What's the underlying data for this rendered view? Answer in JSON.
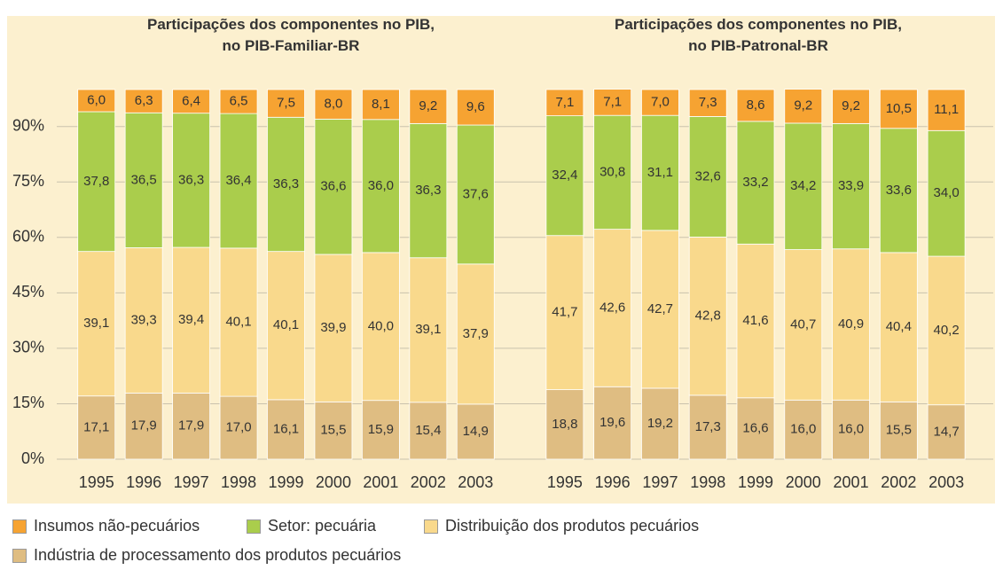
{
  "chart_data": [
    {
      "type": "stacked_bar",
      "title": "Participações dos componentes no PIB,\nno PIB-Familiar-BR",
      "categories": [
        "1995",
        "1996",
        "1997",
        "1998",
        "1999",
        "2000",
        "2001",
        "2002",
        "2003"
      ],
      "ylim": [
        0,
        100
      ],
      "yticks": [
        {
          "value": 0,
          "label": "0%"
        },
        {
          "value": 15,
          "label": "15%"
        },
        {
          "value": 30,
          "label": "30%"
        },
        {
          "value": 45,
          "label": "45%"
        },
        {
          "value": 60,
          "label": "60%"
        },
        {
          "value": 75,
          "label": "75%"
        },
        {
          "value": 90,
          "label": "90%"
        }
      ],
      "grid": true,
      "series": [
        {
          "name": "Insumos não-pecuários",
          "color": "#f6a332",
          "values": [
            6.0,
            6.3,
            6.4,
            6.5,
            7.5,
            8.0,
            8.1,
            9.2,
            9.6
          ],
          "value_labels": [
            "6,0",
            "6,3",
            "6,4",
            "6,5",
            "7,5",
            "8,0",
            "8,1",
            "9,2",
            "9,6"
          ]
        },
        {
          "name": "Setor: pecuária",
          "color": "#aacd4c",
          "values": [
            37.8,
            36.5,
            36.3,
            36.4,
            36.3,
            36.6,
            36.0,
            36.3,
            37.6
          ],
          "value_labels": [
            "37,8",
            "36,5",
            "36,3",
            "36,4",
            "36,3",
            "36,6",
            "36,0",
            "36,3",
            "37,6"
          ]
        },
        {
          "name": "Distribuição dos produtos pecuários",
          "color": "#f9d98c",
          "values": [
            39.1,
            39.3,
            39.4,
            40.1,
            40.1,
            39.9,
            40.0,
            39.1,
            37.9
          ],
          "value_labels": [
            "39,1",
            "39,3",
            "39,4",
            "40,1",
            "40,1",
            "39,9",
            "40,0",
            "39,1",
            "37,9"
          ]
        },
        {
          "name": "Indústria de processamento dos produtos pecuários",
          "color": "#dfbd82",
          "values": [
            17.1,
            17.9,
            17.9,
            17.0,
            16.1,
            15.5,
            15.9,
            15.4,
            14.9
          ],
          "value_labels": [
            "17,1",
            "17,9",
            "17,9",
            "17,0",
            "16,1",
            "15,5",
            "15,9",
            "15,4",
            "14,9"
          ]
        }
      ]
    },
    {
      "type": "stacked_bar",
      "title": "Participações dos componentes no PIB,\nno PIB-Patronal-BR",
      "categories": [
        "1995",
        "1996",
        "1997",
        "1998",
        "1999",
        "2000",
        "2001",
        "2002",
        "2003"
      ],
      "ylim": [
        0,
        100
      ],
      "series": [
        {
          "color": "#f6a332",
          "values": [
            7.1,
            7.1,
            7.0,
            7.3,
            8.6,
            9.2,
            9.2,
            10.5,
            11.1
          ],
          "value_labels": [
            "7,1",
            "7,1",
            "7,0",
            "7,3",
            "8,6",
            "9,2",
            "9,2",
            "10,5",
            "11,1"
          ]
        },
        {
          "color": "#aacd4c",
          "values": [
            32.4,
            30.8,
            31.1,
            32.6,
            33.2,
            34.2,
            33.9,
            33.6,
            34.0
          ],
          "value_labels": [
            "32,4",
            "30,8",
            "31,1",
            "32,6",
            "33,2",
            "34,2",
            "33,9",
            "33,6",
            "34,0"
          ]
        },
        {
          "color": "#f9d98c",
          "values": [
            41.7,
            42.6,
            42.7,
            42.8,
            41.6,
            40.7,
            40.9,
            40.4,
            40.2
          ],
          "value_labels": [
            "41,7",
            "42,6",
            "42,7",
            "42,8",
            "41,6",
            "40,7",
            "40,9",
            "40,4",
            "40,2"
          ]
        },
        {
          "color": "#dfbd82",
          "values": [
            18.8,
            19.6,
            19.2,
            17.3,
            16.6,
            16.0,
            16.0,
            15.5,
            14.7
          ],
          "value_labels": [
            "18,8",
            "19,6",
            "19,2",
            "17,3",
            "16,6",
            "16,0",
            "16,0",
            "15,5",
            "14,7"
          ]
        }
      ]
    }
  ]
}
